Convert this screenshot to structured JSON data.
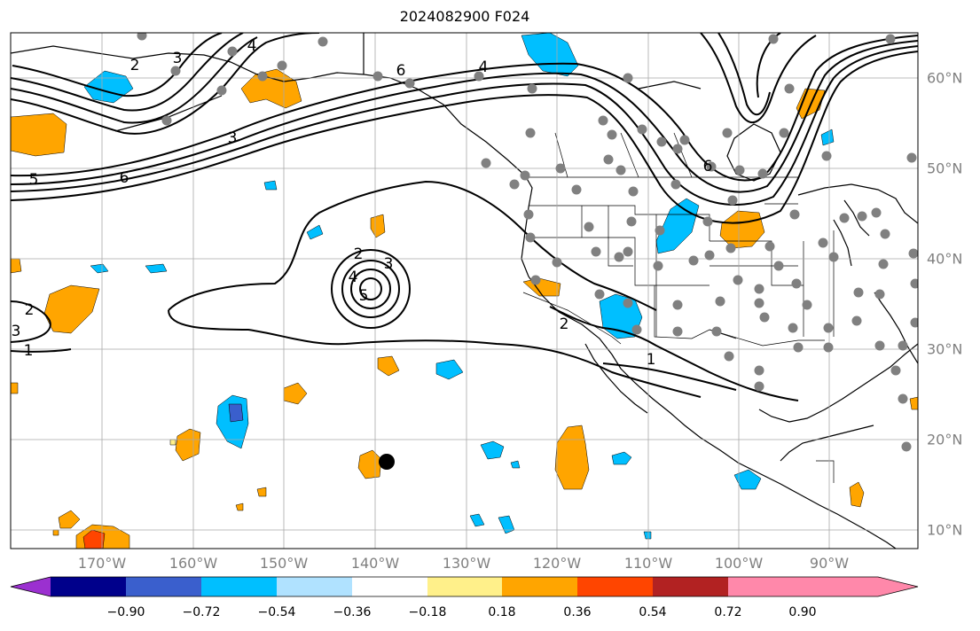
{
  "title": "2024082900 F024",
  "lon_labels": [
    "170°W",
    "160°W",
    "150°W",
    "140°W",
    "130°W",
    "120°W",
    "110°W",
    "100°W",
    "90°W"
  ],
  "lat_labels": [
    "60°N",
    "50°N",
    "40°N",
    "30°N",
    "20°N",
    "10°N"
  ],
  "colorbar": {
    "ticks": [
      "−0.90",
      "−0.72",
      "−0.54",
      "−0.36",
      "−0.18",
      "0.18",
      "0.36",
      "0.54",
      "0.72",
      "0.90"
    ],
    "colors": [
      "#9b30d0",
      "#00008b",
      "#3a5fcd",
      "#00bfff",
      "#b0e2ff",
      "#ffffff",
      "#fff08a",
      "#ffa500",
      "#ff4500",
      "#b22222",
      "#ff88aa"
    ]
  },
  "contour_labels": [
    {
      "text": "4"
    },
    {
      "text": "6"
    },
    {
      "text": "4"
    },
    {
      "text": "3"
    },
    {
      "text": "3"
    },
    {
      "text": "5"
    },
    {
      "text": "6"
    },
    {
      "text": "2"
    },
    {
      "text": "3"
    },
    {
      "text": "4"
    },
    {
      "text": "5"
    },
    {
      "text": "2"
    },
    {
      "text": "2"
    },
    {
      "text": "3"
    },
    {
      "text": "1"
    },
    {
      "text": "2"
    },
    {
      "text": "1"
    },
    {
      "text": "6"
    }
  ],
  "colors": {
    "orange": "#ffa500",
    "red": "#ff4500",
    "deepskyblue": "#00bfff",
    "blue": "#3a5fcd",
    "yellow": "#fff08a",
    "grid": "#a9a9a9",
    "stations": "#808080"
  }
}
